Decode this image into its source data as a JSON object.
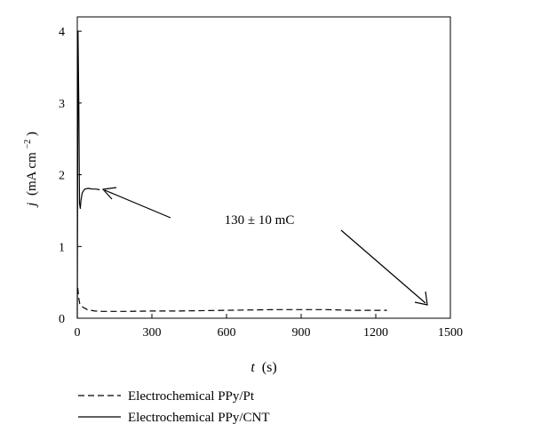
{
  "chart_data": {
    "type": "line",
    "xlabel_var": "t",
    "xlabel_unit": "(s)",
    "ylabel_var": "j",
    "ylabel_unit_main": "(mA cm",
    "ylabel_unit_sup": "−2",
    "ylabel_unit_close": ")",
    "xlim": [
      0,
      1500
    ],
    "ylim": [
      0,
      4.2
    ],
    "xticks": [
      0,
      300,
      600,
      900,
      1200,
      1500
    ],
    "yticks": [
      0,
      1,
      2,
      3,
      4
    ],
    "grid": false,
    "legend_position": "bottom-left",
    "annotation": "130 ± 10 mC",
    "series": [
      {
        "name": "Electrochemical PPy/Pt",
        "dash": "dashed",
        "x": [
          2,
          5,
          10,
          20,
          40,
          70,
          100,
          200,
          300,
          400,
          600,
          800,
          1000,
          1100,
          1245
        ],
        "y": [
          0.42,
          0.3,
          0.2,
          0.16,
          0.12,
          0.1,
          0.095,
          0.095,
          0.1,
          0.1,
          0.11,
          0.12,
          0.12,
          0.11,
          0.11
        ]
      },
      {
        "name": "Electrochemical PPy/CNT",
        "dash": "solid",
        "x": [
          0,
          3,
          6,
          9,
          12,
          15,
          20,
          30,
          45,
          60,
          75,
          90
        ],
        "y": [
          0.0,
          4.0,
          3.0,
          1.6,
          1.53,
          1.65,
          1.75,
          1.8,
          1.81,
          1.8,
          1.8,
          1.79
        ]
      }
    ]
  }
}
